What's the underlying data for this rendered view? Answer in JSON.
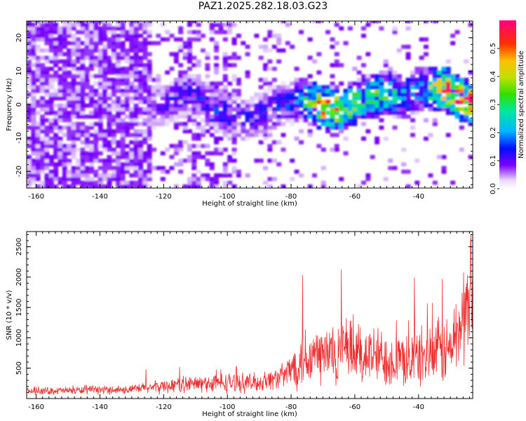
{
  "title": "PAZ1.2025.282.18.03.G23",
  "colors": {
    "snr_line": "#f03030",
    "frame": "#000000",
    "background": "#ffffff"
  },
  "chart_data": [
    {
      "type": "heatmap",
      "name": "spectrogram",
      "xlabel": "Height of straight line (km)",
      "ylabel": "Frequency (Hz)",
      "xlim": [
        -163,
        -23
      ],
      "ylim": [
        -25,
        25
      ],
      "x_ticks": [
        -160,
        -140,
        -120,
        -100,
        -80,
        -60,
        -40
      ],
      "x_tick_labels": [
        "-160",
        "-140",
        "-120",
        "-100",
        "-80",
        "-60",
        "-40"
      ],
      "y_ticks": [
        -20,
        -10,
        0,
        10,
        20
      ],
      "y_tick_labels": [
        "-20",
        "-10",
        "0",
        "10",
        "20"
      ],
      "colorbar": {
        "label": "Normalized spectral amplitude",
        "range": [
          0,
          0.6
        ],
        "ticks": [
          0.0,
          0.1,
          0.2,
          0.3,
          0.4,
          0.5
        ],
        "tick_labels": [
          "0.0",
          "0.1",
          "0.2",
          "0.3",
          "0.4",
          "0.5"
        ]
      },
      "signal_trace": [
        {
          "x": -125,
          "freq": -1.5,
          "amp": 0.08
        },
        {
          "x": -120,
          "freq": 0,
          "amp": 0.12
        },
        {
          "x": -112,
          "freq": 3,
          "amp": 0.14
        },
        {
          "x": -105,
          "freq": -2,
          "amp": 0.15
        },
        {
          "x": -95,
          "freq": -5,
          "amp": 0.12
        },
        {
          "x": -85,
          "freq": -1,
          "amp": 0.15
        },
        {
          "x": -78,
          "freq": 1,
          "amp": 0.18
        },
        {
          "x": -72,
          "freq": -1,
          "amp": 0.55
        },
        {
          "x": -65,
          "freq": -2,
          "amp": 0.45
        },
        {
          "x": -58,
          "freq": 1,
          "amp": 0.3
        },
        {
          "x": -52,
          "freq": 3,
          "amp": 0.35
        },
        {
          "x": -45,
          "freq": 2,
          "amp": 0.25
        },
        {
          "x": -40,
          "freq": 4,
          "amp": 0.2
        },
        {
          "x": -33,
          "freq": 4.5,
          "amp": 0.55
        },
        {
          "x": -25,
          "freq": 0,
          "amp": 0.6
        }
      ]
    },
    {
      "type": "line",
      "name": "snr",
      "xlabel": "Height of straight line (km)",
      "ylabel": "SNR (10 * v/v)",
      "xlim": [
        -163,
        -23
      ],
      "ylim": [
        0,
        2750
      ],
      "x_ticks": [
        -160,
        -140,
        -120,
        -100,
        -80,
        -60,
        -40
      ],
      "x_tick_labels": [
        "-160",
        "-140",
        "-120",
        "-100",
        "-80",
        "-60",
        "-40"
      ],
      "y_ticks": [
        500,
        1000,
        1500,
        2000,
        2500
      ],
      "y_tick_labels": [
        "500",
        "1000",
        "1500",
        "2000",
        "2500"
      ],
      "envelope": [
        {
          "x": -163,
          "mean": 120,
          "amp": 70
        },
        {
          "x": -130,
          "mean": 150,
          "amp": 90
        },
        {
          "x": -115,
          "mean": 230,
          "amp": 160
        },
        {
          "x": -100,
          "mean": 260,
          "amp": 200
        },
        {
          "x": -90,
          "mean": 260,
          "amp": 180
        },
        {
          "x": -82,
          "mean": 380,
          "amp": 250
        },
        {
          "x": -76,
          "mean": 700,
          "amp": 650
        },
        {
          "x": -60,
          "mean": 750,
          "amp": 650
        },
        {
          "x": -45,
          "mean": 620,
          "amp": 520
        },
        {
          "x": -30,
          "mean": 800,
          "amp": 700
        },
        {
          "x": -24,
          "mean": 1600,
          "amp": 1100
        }
      ],
      "peaks": [
        {
          "x": -125.5,
          "y": 480
        },
        {
          "x": -115,
          "y": 520
        },
        {
          "x": -102,
          "y": 480
        },
        {
          "x": -76.3,
          "y": 2030
        },
        {
          "x": -64.2,
          "y": 2130
        },
        {
          "x": -41.3,
          "y": 1990
        },
        {
          "x": -32.5,
          "y": 1970
        },
        {
          "x": -23.5,
          "y": 2700
        }
      ]
    }
  ]
}
